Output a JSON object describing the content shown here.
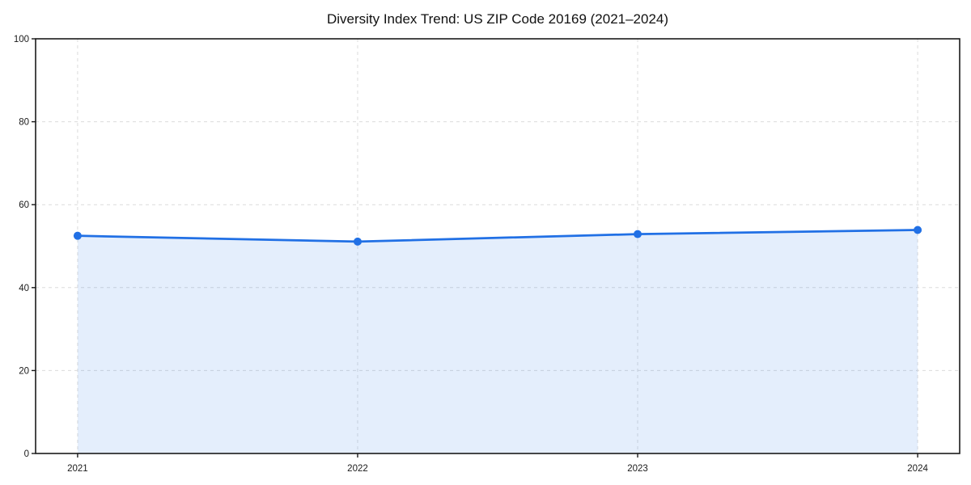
{
  "chart_data": {
    "type": "area",
    "title": "Diversity Index Trend: US ZIP Code 20169 (2021–2024)",
    "categories": [
      "2021",
      "2022",
      "2023",
      "2024"
    ],
    "series": [
      {
        "name": "Diversity Index",
        "values": [
          52.5,
          51.1,
          52.9,
          53.9
        ]
      }
    ],
    "xlabel": "",
    "ylabel": "",
    "ylim": [
      0,
      100
    ],
    "yticks": [
      0,
      20,
      40,
      60,
      80,
      100
    ],
    "grid": true,
    "grid_style": "dashed",
    "legend_position": "none",
    "colors": {
      "line": "#2170e5",
      "marker": "#2170e5",
      "fill": "rgba(33, 112, 229, 0.12)",
      "grid": "#dcdcdc",
      "spine": "#1a1a1a",
      "tick_text": "#1a1a1a",
      "title_text": "#111111",
      "background": "#ffffff"
    }
  }
}
